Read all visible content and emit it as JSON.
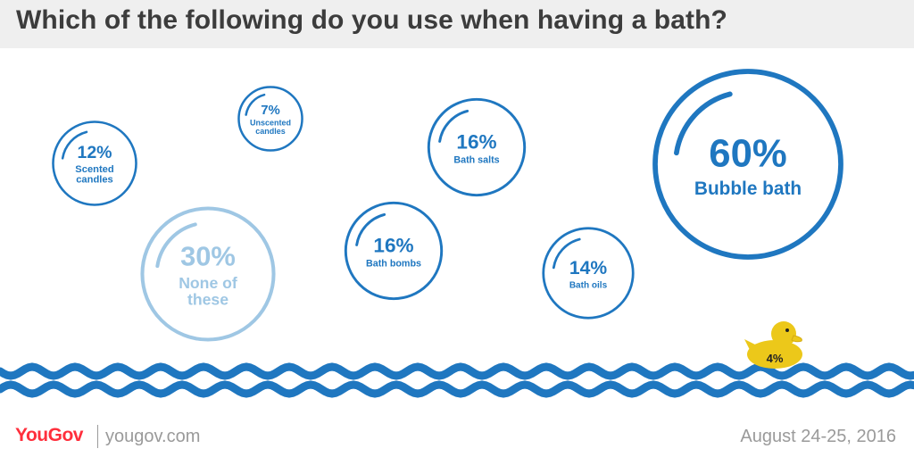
{
  "title": "Which of the following do you use when having a bath?",
  "colors": {
    "primary": "#1f77c0",
    "none": "#9fc7e4",
    "water": "#1f77c0",
    "duck": "#ecc81a",
    "header_bg": "#efefef",
    "brand": "#ff2f3c"
  },
  "chart_data": {
    "type": "bubble",
    "title": "Which of the following do you use when having a bath?",
    "items": [
      {
        "label": "Scented candles",
        "value": 12,
        "value_text": "12%",
        "lines": [
          "Scented",
          "candles"
        ]
      },
      {
        "label": "Unscented candles",
        "value": 7,
        "value_text": "7%",
        "lines": [
          "Unscented",
          "candles"
        ]
      },
      {
        "label": "None of these",
        "value": 30,
        "value_text": "30%",
        "lines": [
          "None of",
          "these"
        ]
      },
      {
        "label": "Bath bombs",
        "value": 16,
        "value_text": "16%",
        "lines": [
          "Bath bombs"
        ]
      },
      {
        "label": "Bath salts",
        "value": 16,
        "value_text": "16%",
        "lines": [
          "Bath salts"
        ]
      },
      {
        "label": "Bath oils",
        "value": 14,
        "value_text": "14%",
        "lines": [
          "Bath oils"
        ]
      },
      {
        "label": "Bubble bath",
        "value": 60,
        "value_text": "60%",
        "lines": [
          "Bubble bath"
        ]
      }
    ],
    "duck": {
      "label": "Rubber duck",
      "value": 4,
      "value_text": "4%"
    }
  },
  "footer": {
    "brand_you": "You",
    "brand_gov": "Gov",
    "site": "yougov.com",
    "date": "August 24-25, 2016"
  }
}
